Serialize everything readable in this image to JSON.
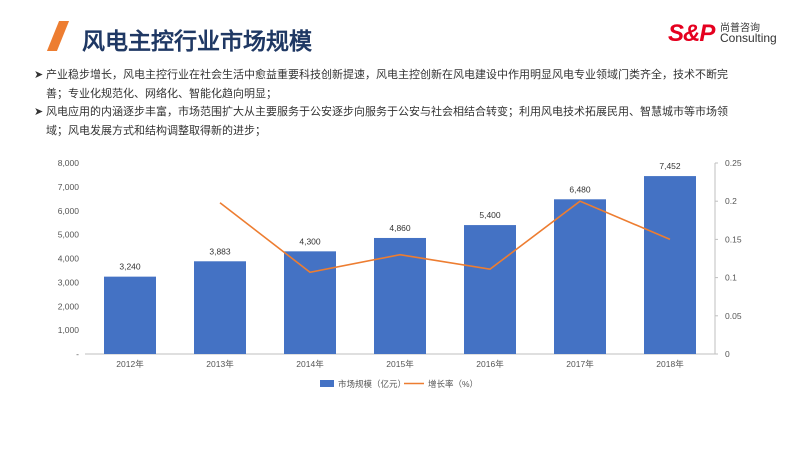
{
  "header": {
    "title": "风电主控行业市场规模",
    "logo": {
      "mark": "S&P",
      "cn": "尚普咨询",
      "en": "Consulting"
    }
  },
  "bullets": [
    "产业稳步增长，风电主控行业在社会生活中愈益重要科技创新提速，风电主控创新在风电建设中作用明显风电专业领域门类齐全，技术不断完善；专业化规范化、网络化、智能化趋向明显；",
    "风电应用的内涵逐步丰富，市场范围扩大从主要服务于公安逐步向服务于公安与社会相结合转变；利用风电技术拓展民用、智慧城市等市场领域；风电发展方式和结构调整取得新的进步；"
  ],
  "bullet_marker": "➤",
  "colors": {
    "bar": "#4472c4",
    "line": "#ed7d31",
    "title": "#1f3864"
  },
  "chart_data": {
    "type": "bar",
    "title": "",
    "categories": [
      "2012年",
      "2013年",
      "2014年",
      "2015年",
      "2016年",
      "2017年",
      "2018年"
    ],
    "series": [
      {
        "name": "市场规模（亿元）",
        "type": "bar",
        "axis": "left",
        "values": [
          3240,
          3883,
          4300,
          4860,
          5400,
          6480,
          7452
        ],
        "labels": [
          "3,240",
          "3,883",
          "4,300",
          "4,860",
          "5,400",
          "6,480",
          "7,452"
        ]
      },
      {
        "name": "增长率（%）",
        "type": "line",
        "axis": "right",
        "values": [
          null,
          0.198,
          0.107,
          0.13,
          0.111,
          0.2,
          0.15
        ]
      }
    ],
    "y_left": {
      "range": [
        0,
        8000
      ],
      "ticks": [
        "-",
        "1,000",
        "2,000",
        "3,000",
        "4,000",
        "5,000",
        "6,000",
        "7,000",
        "8,000"
      ]
    },
    "y_right": {
      "range": [
        0,
        0.25
      ],
      "ticks": [
        "0",
        "0.05",
        "0.1",
        "0.15",
        "0.2",
        "0.25"
      ]
    },
    "grid": false,
    "legend": "bottom"
  }
}
